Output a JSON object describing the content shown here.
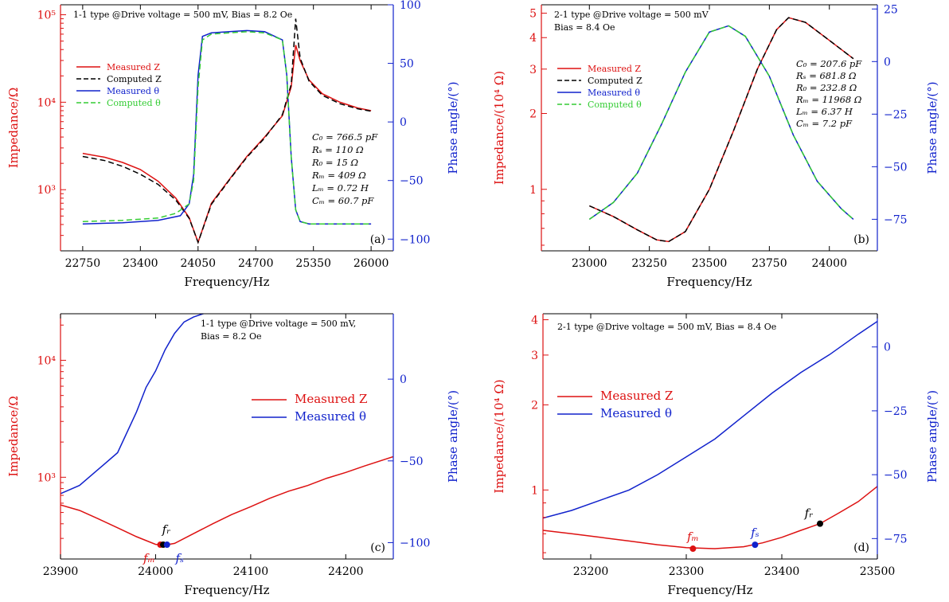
{
  "colors": {
    "red": "#dd1111",
    "blue": "#1122cc",
    "black": "#000000",
    "green": "#33cc33"
  },
  "chart_data": [
    {
      "id": "a",
      "type": "line",
      "panel_label": "(a)",
      "info_line1": "1-1 type @Drive voltage = 500 mV, Bias = 8.2 Oe",
      "info_line2": "",
      "xlabel": "Frequency/Hz",
      "ylabel": "Impedance/Ω",
      "y2label": "Phase angle/(°)",
      "xlim": [
        22500,
        26250
      ],
      "xticks": [
        22750,
        23400,
        24050,
        24700,
        25350,
        26000
      ],
      "ylim_log": [
        200,
        130000
      ],
      "yticks": [
        1000,
        10000,
        100000
      ],
      "ytick_labels": [
        "10³",
        "10⁴",
        "10⁵"
      ],
      "y2lim": [
        -110,
        100
      ],
      "y2ticks": [
        -100,
        -50,
        0,
        50,
        100
      ],
      "y2tick_labels": [
        "−100",
        "−50",
        "0",
        "50",
        "100"
      ],
      "legend": [
        {
          "label": "Measured Z",
          "color": "#dd1111",
          "dash": false
        },
        {
          "label": "Computed Z",
          "color": "#000000",
          "dash": true
        },
        {
          "label": "Measured θ",
          "color": "#1122cc",
          "dash": false
        },
        {
          "label": "Computed θ",
          "color": "#33cc33",
          "dash": true
        }
      ],
      "params": [
        "C₀ = 766.5 pF",
        "Rₛ = 110 Ω",
        "R₀ = 15 Ω",
        "Rₘ = 409 Ω",
        "Lₘ = 0.72 H",
        "Cₘ = 60.7 pF"
      ],
      "series": [
        {
          "legend": "Measured Z",
          "axis": "y",
          "color": "#dd1111",
          "dash": false,
          "x": [
            22750,
            23000,
            23200,
            23400,
            23600,
            23800,
            23950,
            24050,
            24200,
            24400,
            24600,
            24800,
            25000,
            25100,
            25150,
            25200,
            25300,
            25450,
            25650,
            25850,
            26000
          ],
          "y": [
            2600,
            2350,
            2050,
            1700,
            1250,
            800,
            480,
            250,
            700,
            1300,
            2400,
            4000,
            7000,
            15000,
            45000,
            30000,
            18000,
            12500,
            10000,
            8600,
            8000
          ]
        },
        {
          "legend": "Computed Z",
          "axis": "y",
          "color": "#000000",
          "dash": true,
          "x": [
            22750,
            23000,
            23200,
            23400,
            23600,
            23800,
            23950,
            24050,
            24200,
            24400,
            24600,
            24800,
            25000,
            25100,
            25150,
            25200,
            25300,
            25450,
            25650,
            25850,
            26000
          ],
          "y": [
            2400,
            2150,
            1850,
            1500,
            1150,
            760,
            470,
            250,
            680,
            1280,
            2350,
            3900,
            7200,
            16000,
            90000,
            32000,
            17500,
            12000,
            9600,
            8400,
            7900
          ]
        },
        {
          "legend": "Measured θ",
          "axis": "y2",
          "color": "#1122cc",
          "dash": false,
          "x": [
            22750,
            23200,
            23600,
            23850,
            23950,
            24000,
            24050,
            24100,
            24200,
            24400,
            24600,
            24800,
            25000,
            25050,
            25100,
            25150,
            25200,
            25300,
            25600,
            26000
          ],
          "y": [
            -87,
            -86,
            -84,
            -80,
            -70,
            -45,
            40,
            73,
            76,
            77,
            78,
            77,
            70,
            40,
            -30,
            -75,
            -85,
            -87,
            -87,
            -87
          ]
        },
        {
          "legend": "Computed θ",
          "axis": "y2",
          "color": "#33cc33",
          "dash": true,
          "x": [
            22750,
            23200,
            23600,
            23800,
            23950,
            24000,
            24050,
            24100,
            24200,
            24400,
            24600,
            24800,
            25000,
            25050,
            25100,
            25150,
            25200,
            25300,
            25600,
            26000
          ],
          "y": [
            -85,
            -84,
            -82,
            -78,
            -70,
            -50,
            30,
            70,
            75,
            76,
            77,
            76,
            70,
            40,
            -30,
            -75,
            -85,
            -87,
            -87,
            -87
          ]
        }
      ]
    },
    {
      "id": "b",
      "type": "line",
      "panel_label": "(b)",
      "info_line1": "2-1 type @Drive voltage = 500 mV",
      "info_line2": "Bias = 8.4 Oe",
      "xlabel": "Frequency/Hz",
      "ylabel": "Impedance/(10⁴ Ω)",
      "y2label": "Phase angle/(°)",
      "xlim": [
        22800,
        24200
      ],
      "xticks": [
        23000,
        23250,
        23500,
        23750,
        24000
      ],
      "ylim_log": [
        0.57,
        5.4
      ],
      "yticks": [
        1,
        2,
        3,
        4,
        5
      ],
      "ytick_labels": [
        "1",
        "2",
        "3",
        "4",
        "5"
      ],
      "y2lim": [
        -90,
        27
      ],
      "y2ticks": [
        -75,
        -50,
        -25,
        0,
        25
      ],
      "y2tick_labels": [
        "−75",
        "−50",
        "−25",
        "0",
        "25"
      ],
      "legend": [
        {
          "label": "Measured Z",
          "color": "#dd1111",
          "dash": false
        },
        {
          "label": "Computed Z",
          "color": "#000000",
          "dash": true
        },
        {
          "label": "Measured θ",
          "color": "#1122cc",
          "dash": false
        },
        {
          "label": "Computed θ",
          "color": "#33cc33",
          "dash": true
        }
      ],
      "params": [
        "C₀ = 207.6 pF",
        "Rₛ = 681.8 Ω",
        "R₀ = 232.8 Ω",
        "Rₘ = 11968 Ω",
        "Lₘ = 6.37 H",
        "Cₘ = 7.2 pF"
      ],
      "series": [
        {
          "legend": "Measured Z",
          "axis": "y",
          "color": "#dd1111",
          "dash": false,
          "x": [
            23000,
            23100,
            23200,
            23280,
            23330,
            23400,
            23500,
            23600,
            23700,
            23780,
            23830,
            23900,
            24000,
            24100
          ],
          "y": [
            0.86,
            0.78,
            0.69,
            0.63,
            0.62,
            0.68,
            1.0,
            1.7,
            3.0,
            4.3,
            4.8,
            4.6,
            3.9,
            3.3
          ]
        },
        {
          "legend": "Computed Z",
          "axis": "y",
          "color": "#000000",
          "dash": true,
          "x": [
            23000,
            23100,
            23200,
            23280,
            23330,
            23400,
            23500,
            23600,
            23700,
            23780,
            23830,
            23900,
            24000,
            24100
          ],
          "y": [
            0.86,
            0.78,
            0.69,
            0.63,
            0.62,
            0.68,
            1.0,
            1.7,
            3.0,
            4.3,
            4.8,
            4.6,
            3.9,
            3.3
          ]
        },
        {
          "legend": "Measured θ",
          "axis": "y2",
          "color": "#1122cc",
          "dash": false,
          "x": [
            23000,
            23100,
            23200,
            23300,
            23400,
            23500,
            23580,
            23650,
            23750,
            23850,
            23950,
            24050,
            24100
          ],
          "y": [
            -75,
            -67,
            -53,
            -30,
            -5,
            14,
            17,
            12,
            -7,
            -35,
            -57,
            -70,
            -75
          ]
        },
        {
          "legend": "Computed θ",
          "axis": "y2",
          "color": "#33cc33",
          "dash": true,
          "x": [
            23000,
            23100,
            23200,
            23300,
            23400,
            23500,
            23580,
            23650,
            23750,
            23850,
            23950,
            24050,
            24100
          ],
          "y": [
            -75,
            -67,
            -53,
            -30,
            -5,
            14,
            17,
            12,
            -7,
            -35,
            -57,
            -70,
            -75
          ]
        }
      ]
    },
    {
      "id": "c",
      "type": "line",
      "panel_label": "(c)",
      "info_line1": "1-1 type @Drive voltage = 500 mV,",
      "info_line2": "Bias = 8.2 Oe",
      "xlabel": "Frequency/Hz",
      "ylabel": "Impedance/Ω",
      "y2label": "Phase angle/(°)",
      "xlim": [
        23900,
        24250
      ],
      "xticks": [
        23900,
        24000,
        24100,
        24200
      ],
      "ylim_log": [
        200,
        25000
      ],
      "yticks": [
        1000,
        10000
      ],
      "ytick_labels": [
        "10³",
        "10⁴"
      ],
      "y2lim": [
        -110,
        40
      ],
      "y2ticks": [
        -100,
        -50,
        0
      ],
      "y2tick_labels": [
        "−100",
        "−50",
        "0"
      ],
      "legend": [
        {
          "label": "Measured Z",
          "color": "#dd1111",
          "dash": false
        },
        {
          "label": "Measured θ",
          "color": "#1122cc",
          "dash": false
        }
      ],
      "markers": [
        {
          "label": "fₘ",
          "x": 24005,
          "axis": "y",
          "y": 265,
          "color": "#dd1111"
        },
        {
          "label": "fᵣ",
          "x": 24008,
          "axis": "y",
          "y": 265,
          "color": "#000000"
        },
        {
          "label": "fₛ",
          "x": 24012,
          "axis": "y",
          "y": 265,
          "color": "#1122cc"
        }
      ],
      "series": [
        {
          "legend": "Measured Z",
          "axis": "y",
          "color": "#dd1111",
          "dash": false,
          "x": [
            23900,
            23920,
            23940,
            23960,
            23980,
            24000,
            24010,
            24020,
            24040,
            24060,
            24080,
            24100,
            24120,
            24140,
            24160,
            24180,
            24200,
            24220,
            24250
          ],
          "y": [
            580,
            520,
            440,
            370,
            310,
            267,
            263,
            272,
            330,
            400,
            480,
            560,
            660,
            760,
            850,
            980,
            1100,
            1250,
            1500
          ]
        },
        {
          "legend": "Measured θ",
          "axis": "y2",
          "color": "#1122cc",
          "dash": false,
          "x": [
            23900,
            23920,
            23940,
            23960,
            23980,
            23990,
            24000,
            24010,
            24020,
            24030,
            24040,
            24050,
            24060
          ],
          "y": [
            -70,
            -65,
            -55,
            -45,
            -20,
            -5,
            5,
            18,
            28,
            35,
            38,
            40,
            42
          ]
        }
      ]
    },
    {
      "id": "d",
      "type": "line",
      "panel_label": "(d)",
      "info_line1": "2-1 type @Drive voltage = 500 mV, Bias = 8.4 Oe",
      "info_line2": "",
      "xlabel": "Frequency/Hz",
      "ylabel": "Impedance/(10⁴ Ω)",
      "y2label": "Phase angle/(°)",
      "xlim": [
        23150,
        23500
      ],
      "xticks": [
        23200,
        23300,
        23400,
        23500
      ],
      "ylim_log": [
        0.57,
        4.2
      ],
      "yticks": [
        1,
        2,
        3,
        4
      ],
      "ytick_labels": [
        "1",
        "2",
        "3",
        "4"
      ],
      "y2lim": [
        -83,
        13
      ],
      "y2ticks": [
        -75,
        -50,
        -25,
        0
      ],
      "y2tick_labels": [
        "−75",
        "−50",
        "−25",
        "0"
      ],
      "legend": [
        {
          "label": "Measured Z",
          "color": "#dd1111",
          "dash": false
        },
        {
          "label": "Measured θ",
          "color": "#1122cc",
          "dash": false
        }
      ],
      "markers": [
        {
          "label": "fₘ",
          "x": 23307,
          "axis": "y",
          "y": 0.62,
          "color": "#dd1111"
        },
        {
          "label": "fₛ",
          "x": 23372,
          "axis": "y",
          "y": 0.64,
          "color": "#1122cc"
        },
        {
          "label": "fᵣ",
          "x": 23440,
          "axis": "y",
          "y": 0.76,
          "color": "#000000"
        }
      ],
      "series": [
        {
          "legend": "Measured Z",
          "axis": "y",
          "color": "#dd1111",
          "dash": false,
          "x": [
            23150,
            23180,
            23210,
            23240,
            23270,
            23300,
            23330,
            23360,
            23380,
            23400,
            23420,
            23440,
            23460,
            23480,
            23500
          ],
          "y": [
            0.72,
            0.7,
            0.68,
            0.66,
            0.64,
            0.625,
            0.62,
            0.63,
            0.65,
            0.68,
            0.72,
            0.76,
            0.83,
            0.91,
            1.03
          ]
        },
        {
          "legend": "Measured θ",
          "axis": "y2",
          "color": "#1122cc",
          "dash": false,
          "x": [
            23150,
            23180,
            23210,
            23240,
            23270,
            23300,
            23330,
            23360,
            23390,
            23420,
            23450,
            23480,
            23500
          ],
          "y": [
            -67,
            -64,
            -60,
            -56,
            -50,
            -43,
            -36,
            -27,
            -18,
            -10,
            -3,
            5,
            10
          ]
        }
      ]
    }
  ]
}
